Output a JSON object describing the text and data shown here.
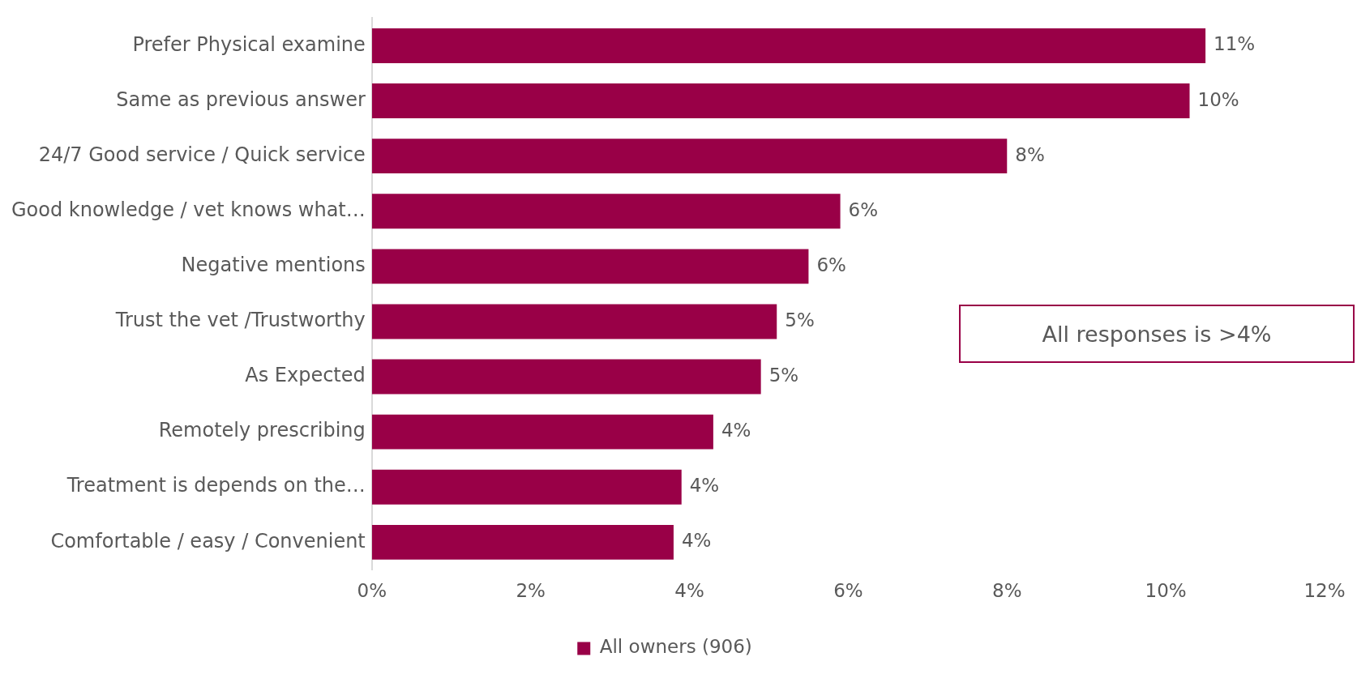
{
  "chart_data": {
    "type": "bar",
    "orientation": "horizontal",
    "categories": [
      "Prefer Physical examine",
      "Same as previous answer",
      "24/7 Good service / Quick service",
      "Good knowledge / vet knows what…",
      "Negative mentions",
      "Trust the vet /Trustworthy",
      "As Expected",
      "Remotely prescribing",
      "Treatment is depends on the…",
      "Comfortable / easy / Convenient"
    ],
    "series": [
      {
        "name": "All owners (906)",
        "color": "#990047",
        "values": [
          10.5,
          10.3,
          8.0,
          5.9,
          5.5,
          5.1,
          4.9,
          4.3,
          3.9,
          3.8
        ],
        "value_labels": [
          "11%",
          "10%",
          "8%",
          "6%",
          "6%",
          "5%",
          "5%",
          "4%",
          "4%",
          "4%"
        ]
      }
    ],
    "xlim": [
      0,
      12
    ],
    "xticks": [
      {
        "value": 0,
        "label": "0%"
      },
      {
        "value": 2,
        "label": "2%"
      },
      {
        "value": 4,
        "label": "4%"
      },
      {
        "value": 6,
        "label": "6%"
      },
      {
        "value": 8,
        "label": "8%"
      },
      {
        "value": 10,
        "label": "10%"
      },
      {
        "value": 12,
        "label": "12%"
      }
    ],
    "grid": false,
    "legend": "bottom",
    "annotations": [
      "All responses is >4%"
    ]
  }
}
